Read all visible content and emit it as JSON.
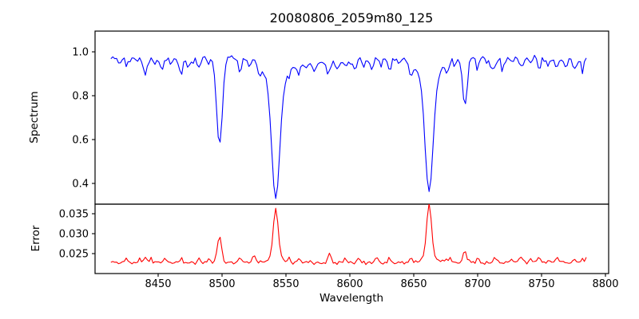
{
  "chart_data": {
    "type": "line",
    "title": "20080806_2059m80_125",
    "xlabel": "Wavelength",
    "x_ticks": [
      {
        "v": 8450,
        "label": "8450"
      },
      {
        "v": 8500,
        "label": "8500"
      },
      {
        "v": 8550,
        "label": "8550"
      },
      {
        "v": 8600,
        "label": "8600"
      },
      {
        "v": 8650,
        "label": "8650"
      },
      {
        "v": 8700,
        "label": "8700"
      },
      {
        "v": 8750,
        "label": "8750"
      },
      {
        "v": 8800,
        "label": "8800"
      }
    ],
    "xlim": [
      8400.6,
      8802.5
    ],
    "x_range_data": [
      8413,
      8786
    ],
    "grid": false,
    "legend": "none",
    "subplots": [
      {
        "name": "spectrum",
        "ylabel": "Spectrum",
        "color": "#0000ff",
        "ylim": [
          0.3055,
          1.0945
        ],
        "y_ticks": [
          {
            "v": 1.0,
            "label": "1.0"
          },
          {
            "v": 0.8,
            "label": "0.8"
          },
          {
            "v": 0.6,
            "label": "0.6"
          },
          {
            "v": 0.4,
            "label": "0.4"
          }
        ],
        "baseline": 0.965,
        "noise_amp": 0.018,
        "spike_prob": 0.06,
        "spike_base": 0.015,
        "spike_var": 0.025,
        "clip_max": 1.025,
        "step": 1.5,
        "seed": 3,
        "slow_waves": [
          {
            "amp": 0.008,
            "period": 40,
            "phase": 0
          },
          {
            "amp": 0.006,
            "period": 17,
            "phase": 1.3
          }
        ],
        "absorption_lines": [
          {
            "center": 8498,
            "min_value": 0.565,
            "components": [
              {
                "depth": 0.4,
                "width": 3.2
              }
            ]
          },
          {
            "center": 8542,
            "min_value": 0.335,
            "components": [
              {
                "depth": 0.52,
                "width": 4.3
              },
              {
                "depth": 0.11,
                "width": 11
              }
            ]
          },
          {
            "center": 8662,
            "min_value": 0.365,
            "components": [
              {
                "depth": 0.5,
                "width": 4.3
              },
              {
                "depth": 0.1,
                "width": 10
              }
            ]
          }
        ],
        "minor_dips": [
          [
            8420,
            0.03,
            2
          ],
          [
            8427,
            0.025,
            2
          ],
          [
            8434,
            0.02,
            1.5
          ],
          [
            8440,
            0.075,
            2
          ],
          [
            8447,
            0.03,
            1.5
          ],
          [
            8453,
            0.045,
            2
          ],
          [
            8460,
            0.022,
            1.5
          ],
          [
            8468,
            0.065,
            2
          ],
          [
            8475,
            0.03,
            1.5
          ],
          [
            8482,
            0.045,
            2
          ],
          [
            8489,
            0.03,
            1.5
          ],
          [
            8514,
            0.06,
            2
          ],
          [
            8521,
            0.03,
            1.5
          ],
          [
            8529,
            0.05,
            2
          ],
          [
            8560,
            0.045,
            2
          ],
          [
            8566,
            0.03,
            1.5
          ],
          [
            8572,
            0.035,
            2
          ],
          [
            8583,
            0.055,
            2
          ],
          [
            8590,
            0.04,
            2
          ],
          [
            8597,
            0.03,
            1.5
          ],
          [
            8604,
            0.045,
            2
          ],
          [
            8611,
            0.03,
            1.5
          ],
          [
            8617,
            0.04,
            2
          ],
          [
            8624,
            0.03,
            1.5
          ],
          [
            8631,
            0.04,
            2
          ],
          [
            8638,
            0.025,
            1.5
          ],
          [
            8648,
            0.06,
            2
          ],
          [
            8676,
            0.04,
            2
          ],
          [
            8682,
            0.03,
            1.5
          ],
          [
            8690,
            0.215,
            2.5
          ],
          [
            8700,
            0.045,
            2
          ],
          [
            8707,
            0.03,
            1.5
          ],
          [
            8713,
            0.055,
            2
          ],
          [
            8720,
            0.04,
            2
          ],
          [
            8727,
            0.03,
            1.5
          ],
          [
            8734,
            0.05,
            2
          ],
          [
            8741,
            0.03,
            1.5
          ],
          [
            8748,
            0.045,
            2
          ],
          [
            8755,
            0.03,
            1.5
          ],
          [
            8762,
            0.04,
            2
          ],
          [
            8769,
            0.03,
            1.5
          ],
          [
            8776,
            0.04,
            2
          ],
          [
            8782,
            0.025,
            1.5
          ]
        ]
      },
      {
        "name": "error",
        "ylabel": "Error",
        "color": "#ff0000",
        "ylim": [
          0.02,
          0.0374
        ],
        "y_ticks": [
          {
            "v": 0.035,
            "label": "0.035"
          },
          {
            "v": 0.03,
            "label": "0.030"
          },
          {
            "v": 0.025,
            "label": "0.025"
          }
        ],
        "baseline": 0.0228,
        "noise_amp": 0.0006,
        "spike_prob": 0.05,
        "spike_base": 0.0005,
        "spike_var": 0.001,
        "step": 1.5,
        "seed": 11,
        "peaks": [
          {
            "center": 8498,
            "peak_value": 0.0295,
            "components": [
              [
                0.0066,
                2.3
              ]
            ]
          },
          {
            "center": 8542,
            "peak_value": 0.035,
            "components": [
              [
                0.0118,
                2.6
              ],
              [
                0.0018,
                6.5
              ]
            ]
          },
          {
            "center": 8662,
            "peak_value": 0.036,
            "components": [
              [
                0.013,
                2.6
              ],
              [
                0.0018,
                6.5
              ]
            ]
          },
          {
            "center": 8690,
            "peak_value": 0.026,
            "components": [
              [
                0.003,
                1.8
              ]
            ]
          }
        ],
        "minor_bumps": [
          [
            8425,
            0.0008,
            1.5
          ],
          [
            8440,
            0.0012,
            1.6
          ],
          [
            8455,
            0.0009,
            1.5
          ],
          [
            8468,
            0.0011,
            1.6
          ],
          [
            8482,
            0.0009,
            1.5
          ],
          [
            8514,
            0.0012,
            1.5
          ],
          [
            8525,
            0.0018,
            1.8
          ],
          [
            8560,
            0.0009,
            1.5
          ],
          [
            8584,
            0.0022,
            1.8
          ],
          [
            8596,
            0.0008,
            1.5
          ],
          [
            8607,
            0.0012,
            1.6
          ],
          [
            8620,
            0.0008,
            1.5
          ],
          [
            8631,
            0.0009,
            1.5
          ],
          [
            8648,
            0.0012,
            1.6
          ],
          [
            8676,
            0.0009,
            1.5
          ],
          [
            8700,
            0.001,
            1.5
          ],
          [
            8713,
            0.0012,
            1.6
          ],
          [
            8727,
            0.0009,
            1.5
          ],
          [
            8734,
            0.0014,
            1.6
          ],
          [
            8741,
            0.0009,
            1.5
          ],
          [
            8748,
            0.001,
            1.5
          ],
          [
            8762,
            0.0012,
            1.6
          ],
          [
            8776,
            0.0009,
            1.5
          ]
        ]
      }
    ]
  }
}
